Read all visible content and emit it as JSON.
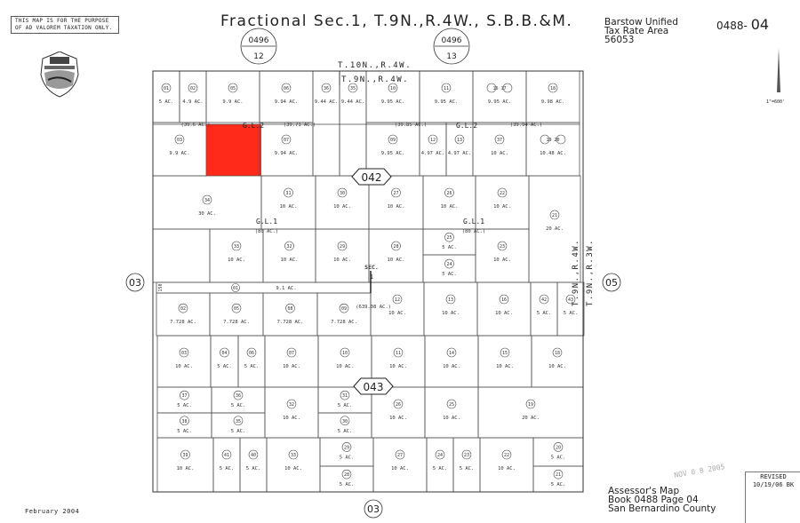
{
  "header": {
    "disclaimer": "THIS MAP IS FOR THE PURPOSE OF AD VALOREM TAXATION ONLY.",
    "title": "Fractional Sec.1, T.9N.,R.4W., S.B.B.&M.",
    "tax_rate_area": [
      "Barstow Unified",
      "Tax Rate Area",
      "56053"
    ],
    "map_number_prefix": "0488-",
    "map_number_page": "04",
    "adjacent_top_left": {
      "book": "0496",
      "page": "12"
    },
    "adjacent_top_right": {
      "book": "0496",
      "page": "13"
    }
  },
  "township_labels": {
    "north_outer": "T.10N.,R.4W.",
    "north_inner": "T.9N.,R.4W.",
    "east_inner": "T.9N.,R.4W.",
    "east_outer": "T.9N.,R.3W."
  },
  "adjacent_pages": {
    "left": "03",
    "right": "05",
    "bottom": "03"
  },
  "block_labels": [
    "042",
    "043"
  ],
  "section_label": "SEC.",
  "section_number": "1",
  "section_acreage": "(639.08 AC.)",
  "government_lots": [
    {
      "label": "G.L.2",
      "acres_left": "(39.6 AC.)",
      "acres_right": "(39.71 AC.)"
    },
    {
      "label": "G.L.2",
      "acres_left": "(39.85 AC.)",
      "acres_right": "(39.94 AC.)"
    },
    {
      "label": "G.L.1",
      "acres": "(80 AC.)"
    },
    {
      "label": "G.L.1",
      "acres": "(80 AC.)"
    }
  ],
  "strip_width": "150",
  "highlight_color": "#ff2a1a",
  "highlighted_parcel": "selected parcel",
  "parcels": [
    {
      "apn": "01",
      "acres": "5 AC."
    },
    {
      "apn": "02",
      "acres": "4.9 AC."
    },
    {
      "apn": "05",
      "acres": "9.9 AC."
    },
    {
      "apn": "06",
      "acres": "9.94 AC."
    },
    {
      "apn": "36",
      "acres": "9.44 AC."
    },
    {
      "apn": "35",
      "acres": "9.44 AC."
    },
    {
      "apn": "10",
      "acres": "9.95 AC."
    },
    {
      "apn": "11",
      "acres": "9.95 AC."
    },
    {
      "apn": "16  17",
      "acres": "9.95 AC."
    },
    {
      "apn": "18",
      "acres": "9.98 AC."
    },
    {
      "apn": "03",
      "acres": "9.9 AC."
    },
    {
      "apn": "07",
      "acres": "9.94 AC."
    },
    {
      "apn": "09",
      "acres": "9.95 AC."
    },
    {
      "apn": "12",
      "acres": "4.97 AC."
    },
    {
      "apn": "13",
      "acres": "4.97 AC."
    },
    {
      "apn": "37",
      "acres": "10 AC."
    },
    {
      "apn": "19  20",
      "acres": "10.48 AC."
    },
    {
      "apn": "34",
      "acres": "30 AC."
    },
    {
      "apn": "31",
      "acres": "10 AC."
    },
    {
      "apn": "30",
      "acres": "10 AC."
    },
    {
      "apn": "27",
      "acres": "10 AC."
    },
    {
      "apn": "26",
      "acres": "10 AC."
    },
    {
      "apn": "22",
      "acres": "10 AC."
    },
    {
      "apn": "21",
      "acres": "20 AC."
    },
    {
      "apn": "33",
      "acres": "10 AC."
    },
    {
      "apn": "32",
      "acres": "10 AC."
    },
    {
      "apn": "29",
      "acres": "10 AC."
    },
    {
      "apn": "28",
      "acres": "10 AC."
    },
    {
      "apn": "25",
      "acres": "5 AC."
    },
    {
      "apn": "24",
      "acres": "5 AC."
    },
    {
      "apn": "23",
      "acres": "10 AC."
    },
    {
      "apn": "01",
      "acres": "9.1 AC."
    },
    {
      "apn": "02",
      "acres": "7.728 AC."
    },
    {
      "apn": "05",
      "acres": "7.728 AC."
    },
    {
      "apn": "08",
      "acres": "7.728 AC."
    },
    {
      "apn": "09",
      "acres": "7.728 AC."
    },
    {
      "apn": "12",
      "acres": "10 AC."
    },
    {
      "apn": "13",
      "acres": "10 AC."
    },
    {
      "apn": "16",
      "acres": "10 AC."
    },
    {
      "apn": "42",
      "acres": "5 AC."
    },
    {
      "apn": "43",
      "acres": "5 AC."
    },
    {
      "apn": "03",
      "acres": "10 AC."
    },
    {
      "apn": "04",
      "acres": "5 AC."
    },
    {
      "apn": "06",
      "acres": "5 AC."
    },
    {
      "apn": "07",
      "acres": "10 AC."
    },
    {
      "apn": "10",
      "acres": "10 AC."
    },
    {
      "apn": "11",
      "acres": "10 AC."
    },
    {
      "apn": "14",
      "acres": "10 AC."
    },
    {
      "apn": "15",
      "acres": "10 AC."
    },
    {
      "apn": "18",
      "acres": "10 AC."
    },
    {
      "apn": "37",
      "acres": "5 AC."
    },
    {
      "apn": "36",
      "acres": "5 AC."
    },
    {
      "apn": "38",
      "acres": "5 AC."
    },
    {
      "apn": "35",
      "acres": "5 AC."
    },
    {
      "apn": "32",
      "acres": "10 AC."
    },
    {
      "apn": "31",
      "acres": "5 AC."
    },
    {
      "apn": "30",
      "acres": "5 AC."
    },
    {
      "apn": "26",
      "acres": "10 AC."
    },
    {
      "apn": "25",
      "acres": "10 AC."
    },
    {
      "apn": "19",
      "acres": "20 AC."
    },
    {
      "apn": "39",
      "acres": "10 AC."
    },
    {
      "apn": "41",
      "acres": "5 AC."
    },
    {
      "apn": "40",
      "acres": "5 AC."
    },
    {
      "apn": "33",
      "acres": "10 AC."
    },
    {
      "apn": "29",
      "acres": "5 AC."
    },
    {
      "apn": "28",
      "acres": "5 AC."
    },
    {
      "apn": "27",
      "acres": "10 AC."
    },
    {
      "apn": "24",
      "acres": "5 AC."
    },
    {
      "apn": "23",
      "acres": "5 AC."
    },
    {
      "apn": "22",
      "acres": "10 AC."
    },
    {
      "apn": "20",
      "acres": "5 AC."
    },
    {
      "apn": "21",
      "acres": "5 AC."
    }
  ],
  "footer": {
    "lines": [
      "Assessor's Map",
      "Book 0488 Page 04",
      "San Bernardino County"
    ],
    "date": "February 2004",
    "stamp": "NOV 0 8 2005",
    "revised_label": "REVISED",
    "revised_date": "10/19/06 BK",
    "scale": "1\"=600'"
  }
}
